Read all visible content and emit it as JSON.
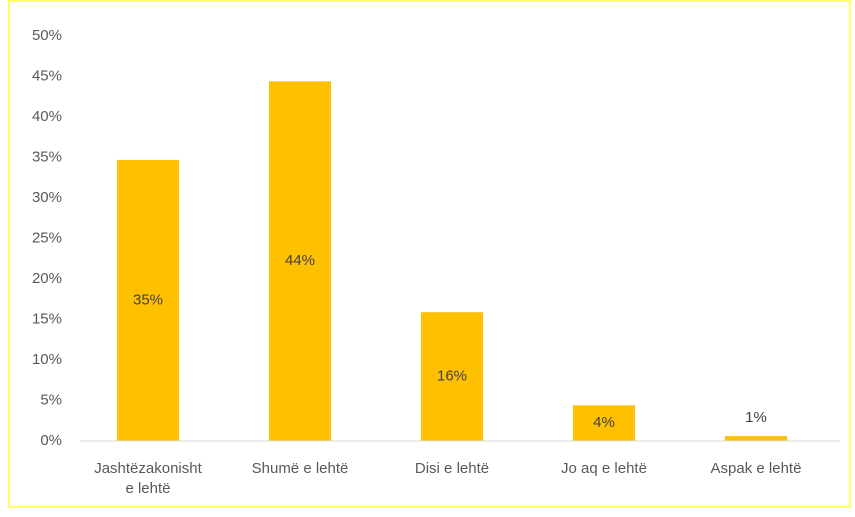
{
  "chart_data": {
    "type": "bar",
    "categories": [
      "Jashtëzakonisht e lehtë",
      "Shumë e lehtë",
      "Disi e lehtë",
      "Jo aq e lehtë",
      "Aspak e lehtë"
    ],
    "values": [
      34.7,
      44.4,
      15.9,
      4.4,
      0.6
    ],
    "value_labels": [
      "35%",
      "44%",
      "16%",
      "4%",
      "1%"
    ],
    "color": "#ffc000",
    "ylim": [
      0,
      50
    ],
    "yticks": [
      {
        "value": 0,
        "label": "0%"
      },
      {
        "value": 5,
        "label": "5%"
      },
      {
        "value": 10,
        "label": "10%"
      },
      {
        "value": 15,
        "label": "15%"
      },
      {
        "value": 20,
        "label": "20%"
      },
      {
        "value": 25,
        "label": "25%"
      },
      {
        "value": 30,
        "label": "30%"
      },
      {
        "value": 35,
        "label": "35%"
      },
      {
        "value": 40,
        "label": "40%"
      },
      {
        "value": 45,
        "label": "45%"
      },
      {
        "value": 50,
        "label": "50%"
      }
    ],
    "grid": false
  }
}
